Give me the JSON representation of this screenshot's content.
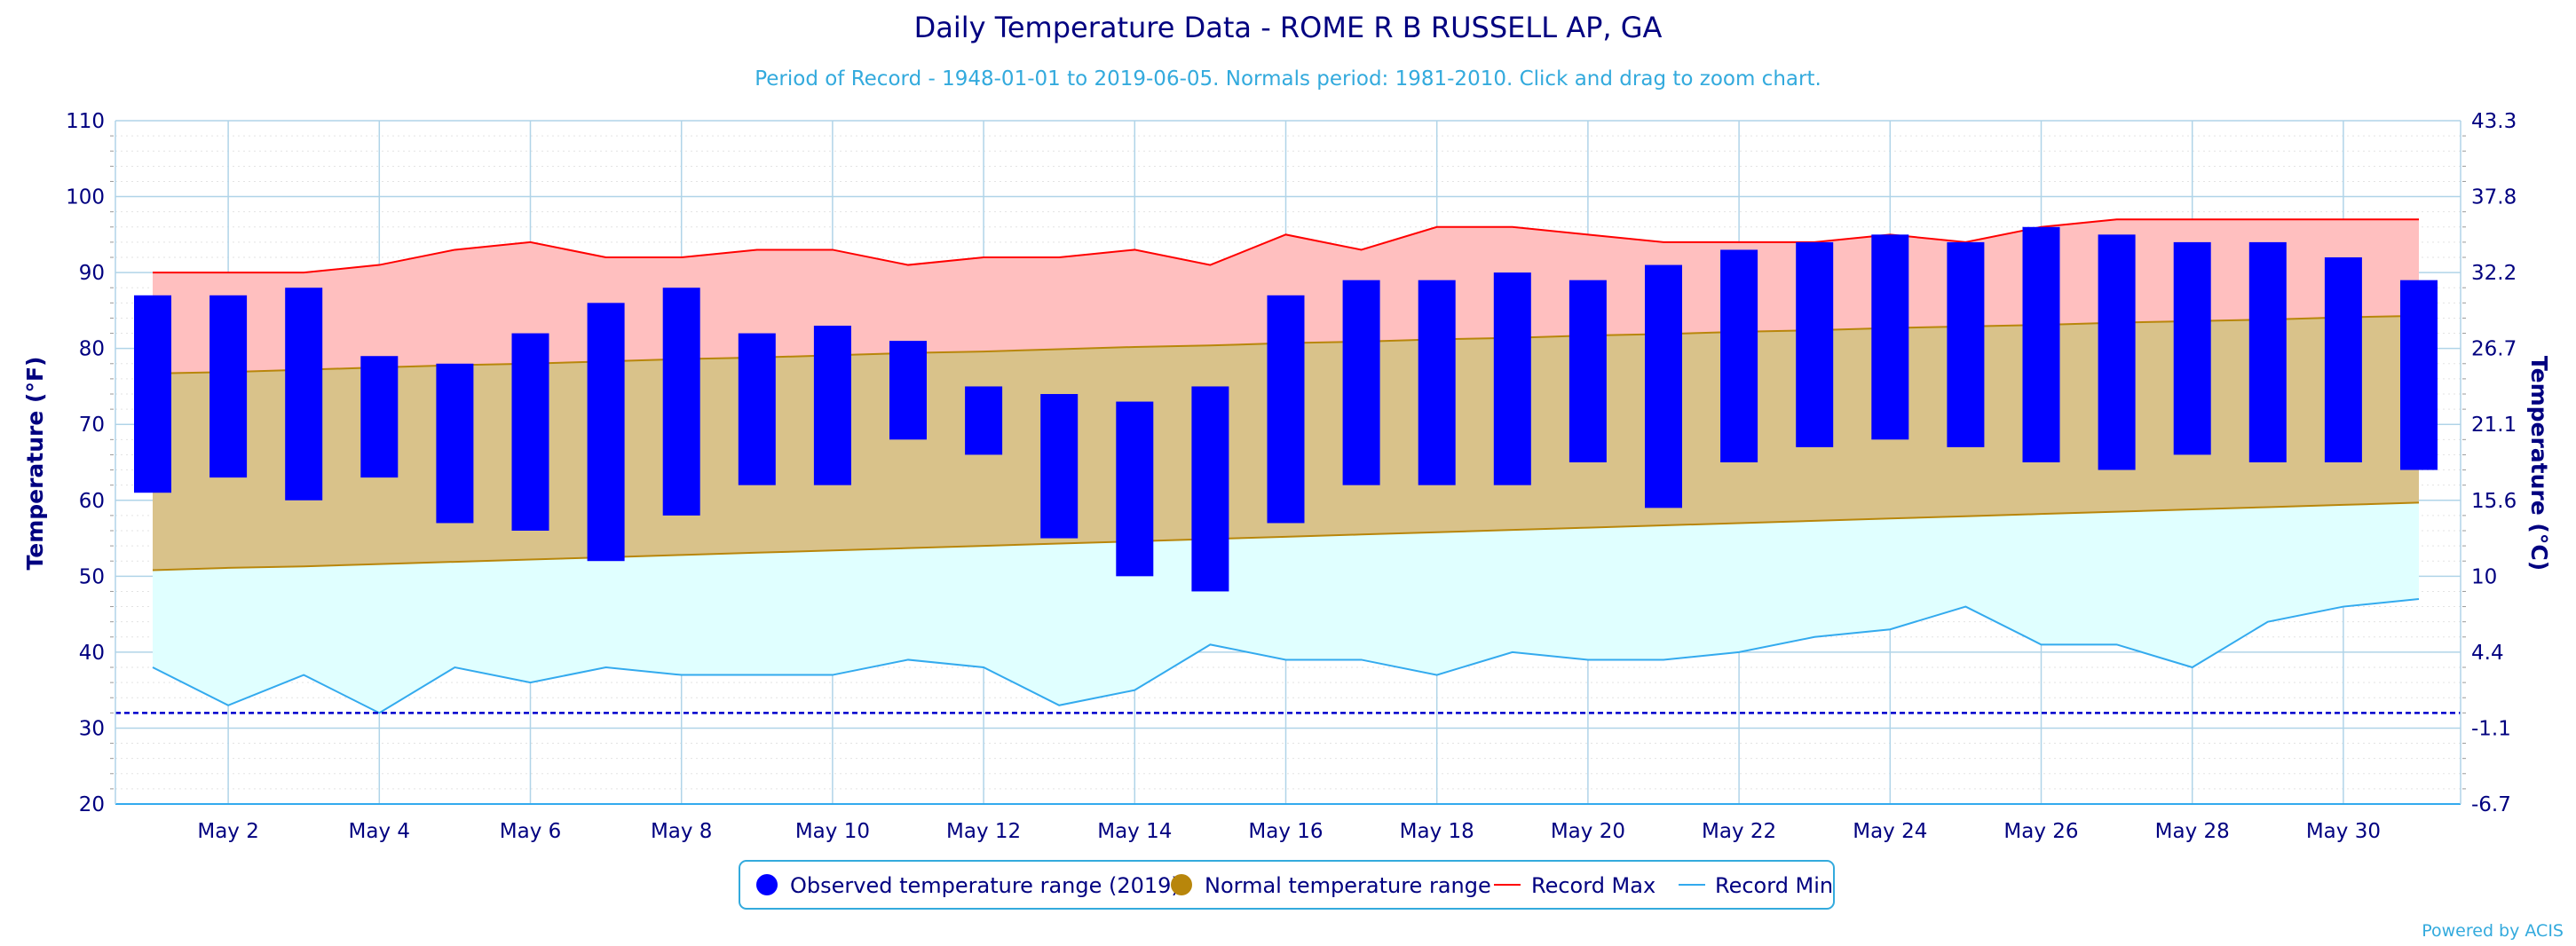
{
  "chart_data": {
    "type": "bar",
    "title": "Daily Temperature Data - ROME R B RUSSELL AP, GA",
    "subtitle": "Period of Record - 1948-01-01 to 2019-06-05. Normals period: 1981-2010. Click and drag to zoom chart.",
    "ylabel": "Temperature (°F)",
    "ylabel_right": "Temperature (°C)",
    "ylim": [
      20,
      110
    ],
    "y_ticks": [
      20,
      30,
      40,
      50,
      60,
      70,
      80,
      90,
      100,
      110
    ],
    "y_ticks_right": [
      "-6.7",
      "-1.1",
      "4.4",
      "10",
      "15.6",
      "21.1",
      "26.7",
      "32.2",
      "37.8",
      "43.3"
    ],
    "freezing_line": 32,
    "days": [
      1,
      2,
      3,
      4,
      5,
      6,
      7,
      8,
      9,
      10,
      11,
      12,
      13,
      14,
      15,
      16,
      17,
      18,
      19,
      20,
      21,
      22,
      23,
      24,
      25,
      26,
      27,
      28,
      29,
      30,
      31
    ],
    "x_tick_labels": [
      "May 2",
      "May 4",
      "May 6",
      "May 8",
      "May 10",
      "May 12",
      "May 14",
      "May 16",
      "May 18",
      "May 20",
      "May 22",
      "May 24",
      "May 26",
      "May 28",
      "May 30"
    ],
    "x_tick_days": [
      2,
      4,
      6,
      8,
      10,
      12,
      14,
      16,
      18,
      20,
      22,
      24,
      26,
      28,
      30
    ],
    "observed_high": [
      87,
      87,
      88,
      79,
      78,
      82,
      86,
      88,
      82,
      83,
      81,
      75,
      74,
      73,
      75,
      87,
      89,
      89,
      90,
      89,
      91,
      93,
      94,
      95,
      94,
      96,
      95,
      94,
      94,
      92,
      89
    ],
    "observed_low": [
      61,
      63,
      60,
      63,
      57,
      56,
      52,
      58,
      62,
      62,
      68,
      66,
      55,
      50,
      48,
      57,
      62,
      62,
      62,
      65,
      59,
      65,
      67,
      68,
      67,
      65,
      64,
      66,
      65,
      65,
      64
    ],
    "normal_high": [
      76.7,
      76.9,
      77.2,
      77.5,
      77.8,
      78.0,
      78.3,
      78.6,
      78.8,
      79.1,
      79.4,
      79.6,
      79.9,
      80.2,
      80.4,
      80.7,
      80.9,
      81.2,
      81.4,
      81.7,
      81.9,
      82.2,
      82.4,
      82.7,
      82.9,
      83.1,
      83.4,
      83.6,
      83.8,
      84.1,
      84.3
    ],
    "normal_low": [
      50.8,
      51.1,
      51.3,
      51.6,
      51.9,
      52.2,
      52.5,
      52.8,
      53.1,
      53.4,
      53.7,
      54.0,
      54.3,
      54.6,
      54.9,
      55.2,
      55.5,
      55.8,
      56.1,
      56.4,
      56.7,
      57.0,
      57.3,
      57.6,
      57.9,
      58.2,
      58.5,
      58.8,
      59.1,
      59.4,
      59.7
    ],
    "record_max": [
      90,
      90,
      90,
      91,
      93,
      94,
      92,
      92,
      93,
      93,
      91,
      92,
      92,
      93,
      91,
      95,
      93,
      96,
      96,
      95,
      94,
      94,
      94,
      95,
      94,
      96,
      97,
      97,
      97,
      97,
      97
    ],
    "record_min": [
      38,
      33,
      37,
      32,
      38,
      36,
      38,
      37,
      37,
      37,
      39,
      38,
      33,
      35,
      41,
      39,
      39,
      37,
      40,
      39,
      39,
      40,
      42,
      43,
      46,
      41,
      41,
      38,
      44,
      46,
      47
    ],
    "series": [
      {
        "name": "Observed temperature range (2019)",
        "color": "#0000ff"
      },
      {
        "name": "Normal temperature range",
        "color": "#b8860b"
      },
      {
        "name": "Record Max",
        "color": "#ff0000"
      },
      {
        "name": "Record Min",
        "color": "#33aaee"
      }
    ],
    "legend_position": "bottom-center",
    "grid": true
  },
  "colors": {
    "title": "#000080",
    "subtitle": "#33aadd",
    "axis_text": "#000080",
    "grid": "#b0d4e8",
    "record_band": "#ffbfbf",
    "normal_band": "#d9c28a",
    "low_band": "#e0ffff",
    "observed": "#0000ff",
    "record_max": "#ff0000",
    "record_min": "#33aaee",
    "normal_line": "#b8860b",
    "freezing": "#0000cc"
  },
  "credit": "Powered by ACIS"
}
